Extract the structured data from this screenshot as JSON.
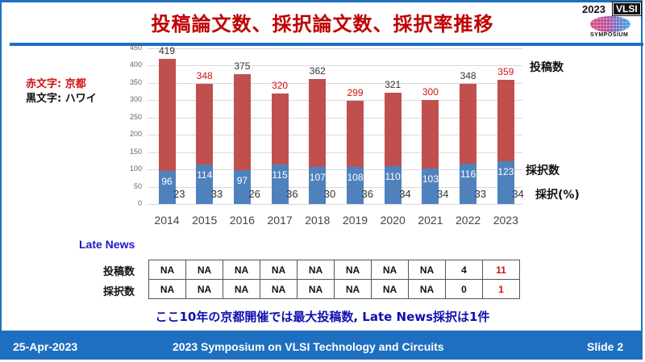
{
  "slide": {
    "title": "投稿論文数、採択論文数、採択率推移",
    "logo": {
      "year": "2023",
      "brand": "VLSI",
      "subtitle": "SYMPOSIUM"
    },
    "legend_note": {
      "red_text": "赤文字: 京都",
      "black_text": "黒文字: ハワイ"
    },
    "side_labels": {
      "submitted": "投稿数",
      "accepted": "採択数",
      "rate": "採択(%)"
    },
    "late_news": {
      "title": "Late News",
      "rows": [
        {
          "label": "投稿数",
          "values": [
            "NA",
            "NA",
            "NA",
            "NA",
            "NA",
            "NA",
            "NA",
            "NA",
            "4",
            "11"
          ]
        },
        {
          "label": "採択数",
          "values": [
            "NA",
            "NA",
            "NA",
            "NA",
            "NA",
            "NA",
            "NA",
            "NA",
            "0",
            "1"
          ]
        }
      ]
    },
    "summary": "ここ10年の京都開催では最大投稿数, Late News採択は1件",
    "footer": {
      "date": "25-Apr-2023",
      "event": "2023 Symposium on VLSI Technology and Circuits",
      "slide": "Slide 2"
    }
  },
  "colors": {
    "submitted_bar": "#c0504d",
    "accepted_bar": "#4f81bd",
    "kyoto_text": "#d01010",
    "hawaii_text": "#333333",
    "accent": "#1f6fc0",
    "title": "#c00000"
  },
  "chart_data": {
    "type": "bar",
    "stacked": true,
    "title": "投稿論文数、採択論文数、採択率推移",
    "categories": [
      "2014",
      "2015",
      "2016",
      "2017",
      "2018",
      "2019",
      "2020",
      "2021",
      "2022",
      "2023"
    ],
    "series": [
      {
        "name": "採択数",
        "values": [
          96,
          114,
          97,
          115,
          107,
          108,
          110,
          103,
          116,
          123
        ]
      },
      {
        "name": "投稿数 (total)",
        "values": [
          419,
          348,
          375,
          320,
          362,
          299,
          321,
          300,
          348,
          359
        ]
      },
      {
        "name": "採択(%)",
        "values": [
          23,
          33,
          26,
          36,
          30,
          36,
          34,
          34,
          33,
          34
        ]
      }
    ],
    "location": [
      "Hawaii",
      "Kyoto",
      "Hawaii",
      "Kyoto",
      "Hawaii",
      "Kyoto",
      "Hawaii",
      "Kyoto",
      "Hawaii",
      "Kyoto"
    ],
    "yticks": [
      "0",
      "50",
      "100",
      "150",
      "200",
      "250",
      "300",
      "350",
      "400",
      "450"
    ],
    "ylim": [
      0,
      450
    ],
    "xlabel": "",
    "ylabel": "",
    "grid": true,
    "legend": [
      "投稿数",
      "採択数",
      "採択(%)"
    ]
  }
}
